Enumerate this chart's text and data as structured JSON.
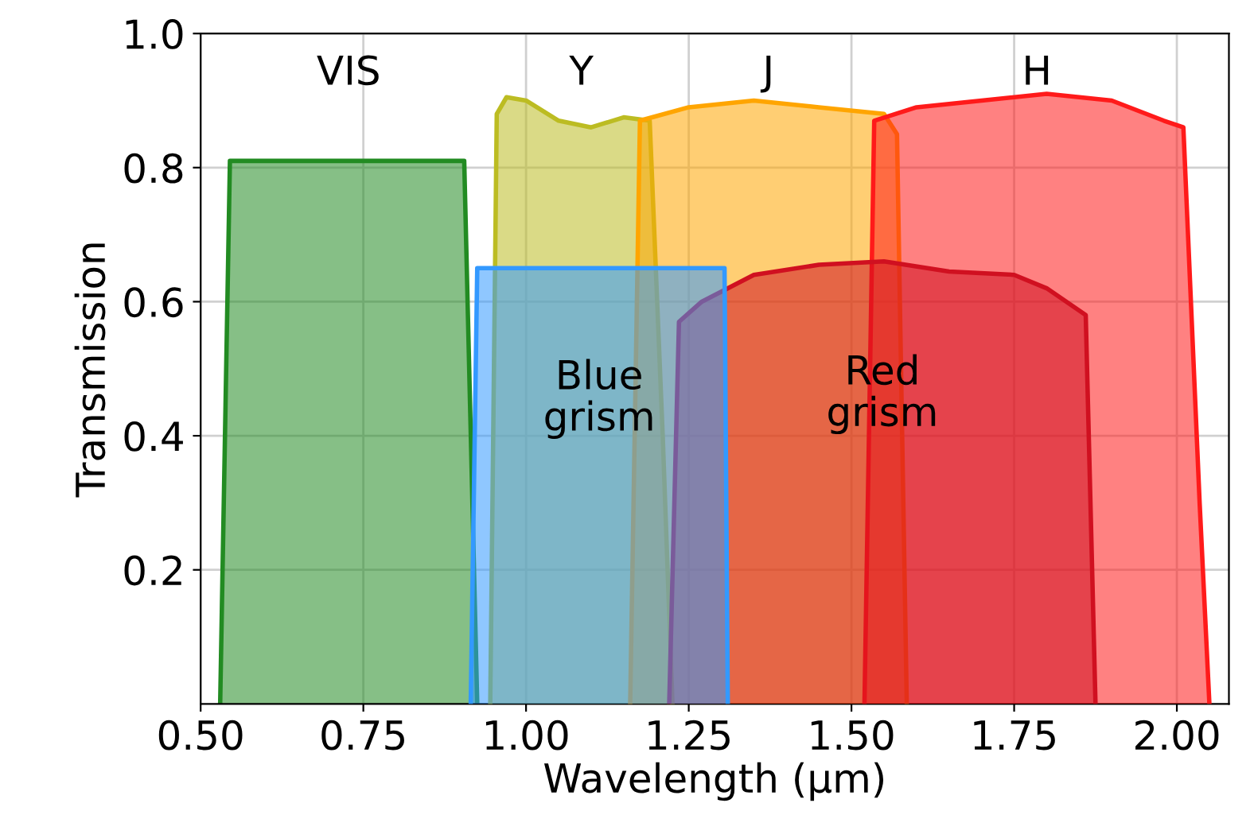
{
  "chart_data": {
    "type": "area",
    "xlabel": "Wavelength (μm)",
    "ylabel": "Transmission",
    "xlim": [
      0.5,
      2.08
    ],
    "ylim": [
      0,
      1.0
    ],
    "xticks": [
      {
        "value": 0.5,
        "label": "0.50"
      },
      {
        "value": 0.75,
        "label": "0.75"
      },
      {
        "value": 1.0,
        "label": "1.00"
      },
      {
        "value": 1.25,
        "label": "1.25"
      },
      {
        "value": 1.5,
        "label": "1.50"
      },
      {
        "value": 1.75,
        "label": "1.75"
      },
      {
        "value": 2.0,
        "label": "2.00"
      }
    ],
    "yticks": [
      0.2,
      0.4,
      0.6,
      0.8,
      {
        "value": 1.0,
        "label": "1.0"
      }
    ],
    "grid": true,
    "legend": false,
    "series": [
      {
        "name": "VIS",
        "color": "#228b22",
        "x": [
          0.53,
          0.545,
          0.905,
          0.925
        ],
        "values": [
          0,
          0.81,
          0.81,
          0
        ]
      },
      {
        "name": "Y",
        "color": "#bcbc22",
        "x": [
          0.945,
          0.955,
          0.97,
          1.0,
          1.05,
          1.1,
          1.15,
          1.19,
          1.21,
          1.225
        ],
        "values": [
          0,
          0.88,
          0.905,
          0.9,
          0.87,
          0.86,
          0.875,
          0.87,
          0.4,
          0
        ]
      },
      {
        "name": "J",
        "color": "#ffa500",
        "x": [
          1.16,
          1.175,
          1.25,
          1.35,
          1.45,
          1.55,
          1.57,
          1.585
        ],
        "values": [
          0,
          0.87,
          0.89,
          0.9,
          0.89,
          0.88,
          0.85,
          0
        ]
      },
      {
        "name": "H",
        "color": "#ff1a1a",
        "x": [
          1.52,
          1.535,
          1.6,
          1.7,
          1.8,
          1.9,
          1.98,
          2.01,
          2.035,
          2.05
        ],
        "values": [
          0,
          0.87,
          0.89,
          0.9,
          0.91,
          0.9,
          0.87,
          0.86,
          0.3,
          0
        ]
      },
      {
        "name": "Red\ngrism",
        "color": "#d01020",
        "x": [
          1.22,
          1.235,
          1.27,
          1.35,
          1.45,
          1.55,
          1.65,
          1.75,
          1.8,
          1.86,
          1.875
        ],
        "values": [
          0,
          0.57,
          0.6,
          0.64,
          0.655,
          0.66,
          0.645,
          0.64,
          0.62,
          0.58,
          0
        ]
      },
      {
        "name": "Blue\ngrism",
        "color": "#3399ff",
        "x": [
          0.915,
          0.925,
          1.305,
          1.31
        ],
        "values": [
          0,
          0.65,
          0.65,
          0
        ]
      }
    ]
  }
}
